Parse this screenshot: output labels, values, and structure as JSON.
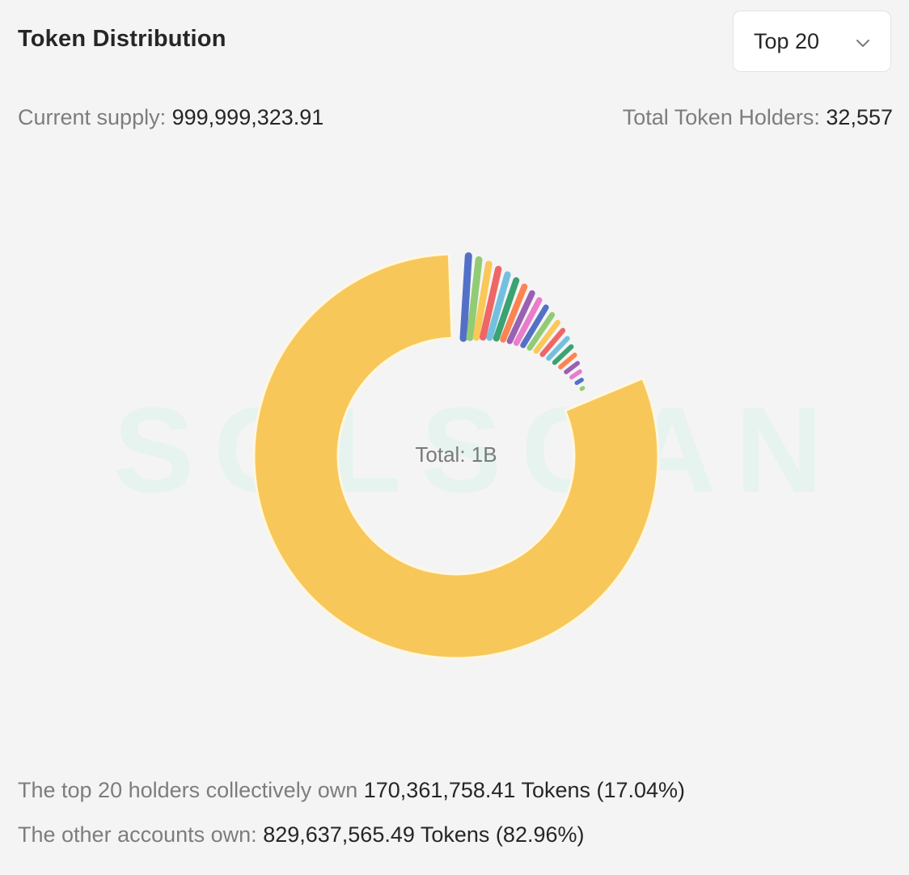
{
  "header": {
    "title": "Token Distribution",
    "select": {
      "value": "Top 20",
      "icon": "chevron-down-icon"
    }
  },
  "stats": {
    "supply_label": "Current supply:",
    "supply_value": "999,999,323.91",
    "holders_label": "Total Token Holders:",
    "holders_value": "32,557"
  },
  "watermark": "SOLSCAN",
  "chart_data": {
    "type": "pie",
    "style": "donut",
    "center_label": "Total: 1B",
    "values": [
      17.04,
      82.96
    ],
    "labels": [
      "Top 20 holders",
      "Other accounts"
    ],
    "top_holder_slices": 20,
    "colors": {
      "other": "#f8c75a",
      "palette": [
        "#5470c6",
        "#91cc75",
        "#fac858",
        "#ee6666",
        "#73c0de",
        "#3ba272",
        "#fc8452",
        "#9a60b4",
        "#ea7ccc"
      ]
    }
  },
  "summary": {
    "top_label": "The top 20 holders collectively own",
    "top_value": "170,361,758.41 Tokens (17.04%)",
    "other_label": "The other accounts own:",
    "other_value": "829,637,565.49 Tokens (82.96%)"
  }
}
